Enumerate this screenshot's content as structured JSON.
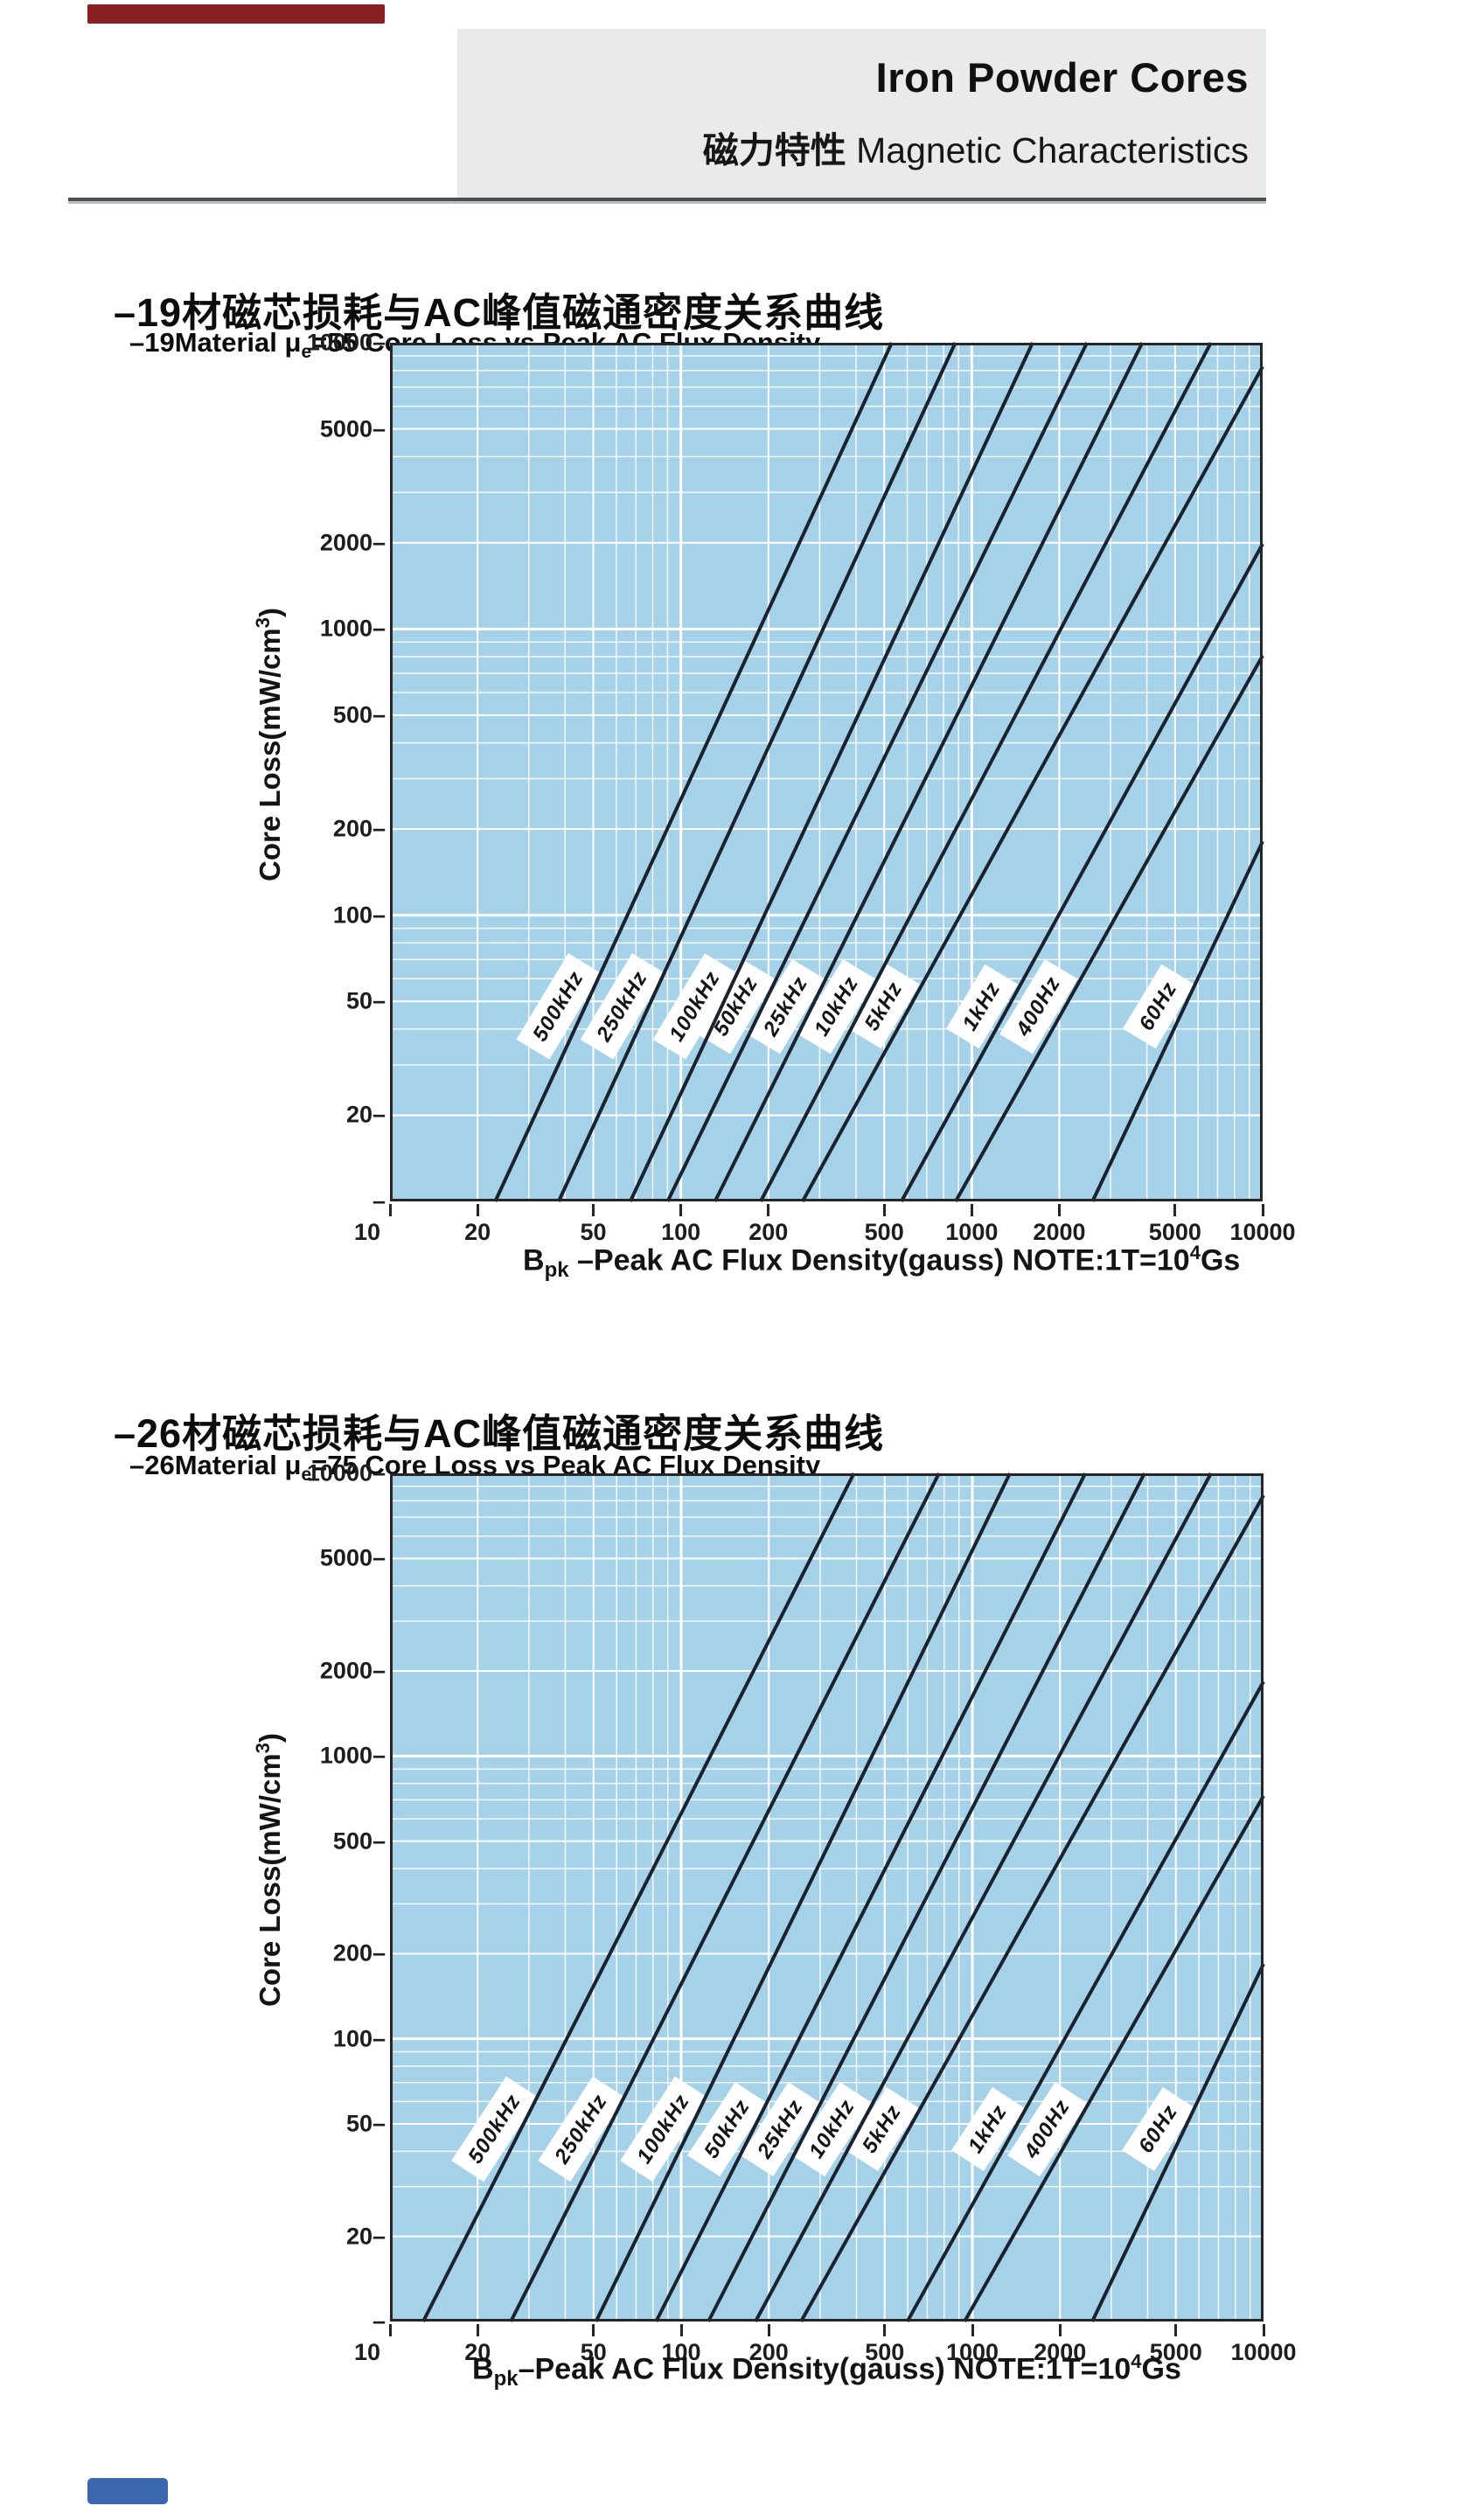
{
  "page": {
    "top_accent_color": "#8b2022",
    "bottom_accent_color": "#3a67ad"
  },
  "header": {
    "title": "Iron Powder Cores",
    "subtitle_cn": "磁力特性",
    "subtitle_en": " Magnetic Characteristics"
  },
  "chart_data": [
    {
      "type": "line",
      "title": "–19材磁芯损耗与AC峰值磁通密度关系曲线",
      "subtitle_prefix": "–19Material μ",
      "subtitle_sub": "e",
      "subtitle_rest": "=55 Core Loss vs Peak AC Flux Density",
      "xlabel_parts": {
        "sym": "B",
        "sub": "pk",
        "rest": " –Peak AC Flux Density(gauss)  NOTE:1T=10",
        "sup": "4",
        "end": "Gs"
      },
      "ylabel_parts": {
        "pre": "Core Loss(mW/cm",
        "sup": "3",
        "end": ")"
      },
      "x_axis": {
        "scale": "log",
        "min": 10,
        "max": 10000,
        "ticks": [
          10,
          20,
          50,
          100,
          200,
          500,
          1000,
          2000,
          5000,
          10000
        ]
      },
      "y_axis": {
        "scale": "log",
        "min": 10,
        "max": 10000,
        "ticks": [
          10,
          20,
          50,
          100,
          200,
          500,
          1000,
          2000,
          5000,
          10000
        ]
      },
      "plot_bg": "#a6d2e9",
      "grid_color": "#ffffff",
      "line_color": "#1a222e",
      "series": [
        {
          "name": "500kHz",
          "points": [
            [
              23,
              10
            ],
            [
              531,
              10000
            ]
          ]
        },
        {
          "name": "250kHz",
          "points": [
            [
              38,
              10
            ],
            [
              878,
              10000
            ]
          ]
        },
        {
          "name": "100kHz",
          "points": [
            [
              67,
              10
            ],
            [
              1619,
              10000
            ]
          ]
        },
        {
          "name": "50kHz",
          "points": [
            [
              90,
              10
            ],
            [
              2489,
              10000
            ]
          ]
        },
        {
          "name": "25kHz",
          "points": [
            [
              131,
              10
            ],
            [
              3857,
              10000
            ]
          ]
        },
        {
          "name": "10kHz",
          "points": [
            [
              188,
              10
            ],
            [
              6638,
              10000
            ]
          ]
        },
        {
          "name": "5kHz",
          "points": [
            [
              262,
              10
            ],
            [
              10000,
              8260
            ]
          ]
        },
        {
          "name": "1kHz",
          "points": [
            [
              573,
              10
            ],
            [
              10000,
              1983
            ]
          ]
        },
        {
          "name": "400Hz",
          "points": [
            [
              880,
              10
            ],
            [
              10000,
              807
            ]
          ]
        },
        {
          "name": "60Hz",
          "points": [
            [
              2600,
              10
            ],
            [
              10000,
              181
            ]
          ]
        }
      ]
    },
    {
      "type": "line",
      "title": "–26材磁芯损耗与AC峰值磁通密度关系曲线",
      "subtitle_prefix": "–26Material μ",
      "subtitle_sub": "e",
      "subtitle_rest": "=75 Core Loss vs Peak AC Flux Density",
      "xlabel_parts": {
        "sym": "B",
        "sub": "pk",
        "rest": "–Peak AC Flux Density(gauss)  NOTE:1T=10",
        "sup": "4",
        "end": "Gs"
      },
      "ylabel_parts": {
        "pre": "Core Loss(mW/cm",
        "sup": "3",
        "end": ")"
      },
      "x_axis": {
        "scale": "log",
        "min": 10,
        "max": 10000,
        "ticks": [
          10,
          20,
          50,
          100,
          200,
          500,
          1000,
          2000,
          5000,
          10000
        ]
      },
      "y_axis": {
        "scale": "log",
        "min": 10,
        "max": 10000,
        "ticks": [
          10,
          20,
          50,
          100,
          200,
          500,
          1000,
          2000,
          5000,
          10000
        ]
      },
      "plot_bg": "#a6d2e9",
      "grid_color": "#ffffff",
      "line_color": "#1a222e",
      "series": [
        {
          "name": "500kHz",
          "points": [
            [
              13,
              10
            ],
            [
              392,
              10000
            ]
          ]
        },
        {
          "name": "250kHz",
          "points": [
            [
              26,
              10
            ],
            [
              768,
              10000
            ]
          ]
        },
        {
          "name": "100kHz",
          "points": [
            [
              51,
              10
            ],
            [
              1346,
              10000
            ]
          ]
        },
        {
          "name": "50kHz",
          "points": [
            [
              82,
              10
            ],
            [
              2443,
              10000
            ]
          ]
        },
        {
          "name": "25kHz",
          "points": [
            [
              124,
              10
            ],
            [
              3900,
              10000
            ]
          ]
        },
        {
          "name": "10kHz",
          "points": [
            [
              180,
              10
            ],
            [
              6600,
              10000
            ]
          ]
        },
        {
          "name": "5kHz",
          "points": [
            [
              258,
              10
            ],
            [
              10000,
              8360
            ]
          ]
        },
        {
          "name": "1kHz",
          "points": [
            [
              598,
              10
            ],
            [
              10000,
              1833
            ]
          ]
        },
        {
          "name": "400Hz",
          "points": [
            [
              940,
              10
            ],
            [
              10000,
              723
            ]
          ]
        },
        {
          "name": "60Hz",
          "points": [
            [
              2580,
              10
            ],
            [
              10000,
              184
            ]
          ]
        }
      ]
    }
  ]
}
